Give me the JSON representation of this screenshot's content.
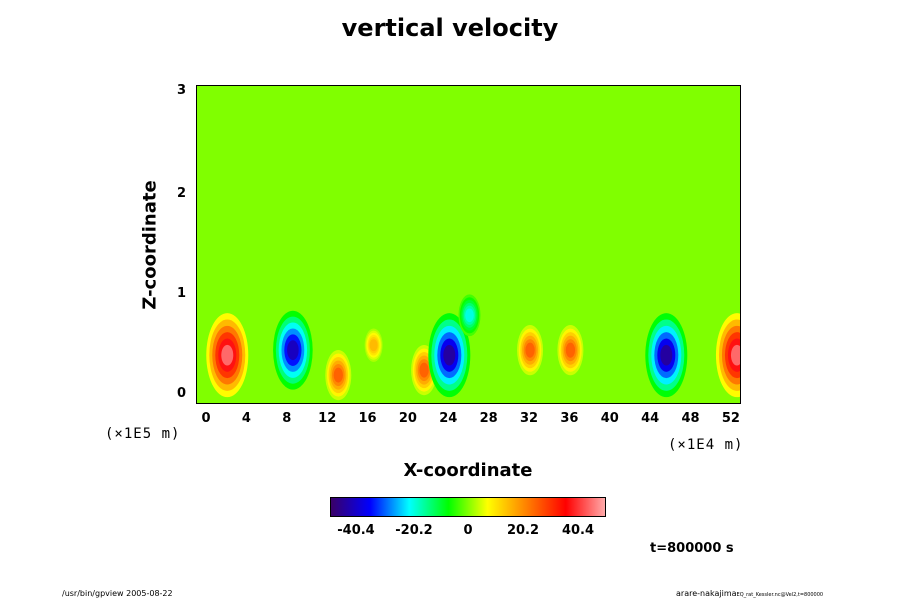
{
  "chart_data": {
    "type": "heatmap",
    "title": "vertical velocity",
    "xlabel": "X-coordinate",
    "ylabel": "Z-coordinate",
    "x_scale_note": "(×1E4 m)",
    "y_scale_note": "(×1E5 m)",
    "xlim": [
      -1,
      53
    ],
    "ylim": [
      -0.1,
      3.1
    ],
    "x_ticks": [
      "0",
      "4",
      "8",
      "12",
      "16",
      "20",
      "24",
      "28",
      "32",
      "36",
      "40",
      "44",
      "48",
      "52"
    ],
    "y_ticks": [
      "3",
      "2",
      "1",
      "0"
    ],
    "colorbar": {
      "ticks": [
        "-40.4",
        "-20.2",
        "0",
        "20.2",
        "40.4"
      ],
      "range": [
        -50.5,
        50.5
      ],
      "colormap": [
        "#3a0066",
        "#0000ff",
        "#00ffff",
        "#00ff00",
        "#ffff00",
        "#ff8000",
        "#ff0000",
        "#ffaaaa"
      ]
    },
    "background_value": 0,
    "features": [
      {
        "x": 2,
        "z": 0.4,
        "sign": "positive",
        "peak": 45
      },
      {
        "x": 8.5,
        "z": 0.45,
        "sign": "negative",
        "peak": -42
      },
      {
        "x": 13,
        "z": 0.2,
        "sign": "positive",
        "peak": 25
      },
      {
        "x": 16.5,
        "z": 0.5,
        "sign": "positive",
        "peak": 15
      },
      {
        "x": 21.5,
        "z": 0.25,
        "sign": "positive",
        "peak": 25
      },
      {
        "x": 24,
        "z": 0.4,
        "sign": "negative",
        "peak": -45
      },
      {
        "x": 26,
        "z": 0.8,
        "sign": "negative",
        "peak": -20
      },
      {
        "x": 32,
        "z": 0.45,
        "sign": "positive",
        "peak": 25
      },
      {
        "x": 36,
        "z": 0.45,
        "sign": "positive",
        "peak": 25
      },
      {
        "x": 45.5,
        "z": 0.4,
        "sign": "negative",
        "peak": -45
      },
      {
        "x": 52.5,
        "z": 0.4,
        "sign": "positive",
        "peak": 45
      }
    ]
  },
  "timestamp": "t=800000 s",
  "footer_left": "/usr/bin/gpview 2005-08-22",
  "footer_right": "arare-nakajima",
  "footer_right_small": "EQ_rat_Kessler.nc@Vel2,t=800000"
}
